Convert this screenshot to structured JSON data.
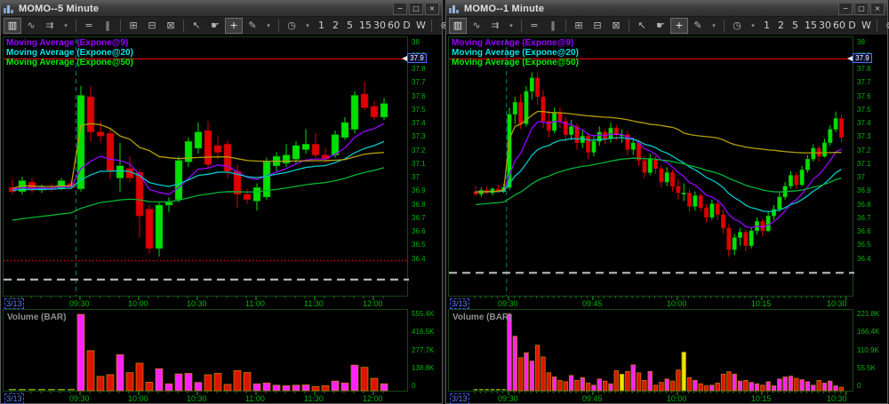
{
  "toolbar": {
    "items": [
      {
        "name": "chart-style-button",
        "glyph": "▥",
        "active": true
      },
      {
        "name": "line-chart-button",
        "glyph": "∿"
      },
      {
        "name": "indicator-button",
        "glyph": "⇉"
      },
      {
        "name": "chart-style-dropdown",
        "glyph": "▾",
        "small": true
      },
      {
        "sep": true
      },
      {
        "name": "horizontal-line-tool-button",
        "glyph": "="
      },
      {
        "name": "vertical-line-tool-button",
        "glyph": "‖"
      },
      {
        "sep": true
      },
      {
        "name": "grid-layout-button",
        "glyph": "⊞"
      },
      {
        "name": "split-horizontal-button",
        "glyph": "⊟"
      },
      {
        "name": "split-diagonal-button",
        "glyph": "⊠"
      },
      {
        "sep": true
      },
      {
        "name": "pointer-tool-button",
        "glyph": "↖"
      },
      {
        "name": "pan-tool-button",
        "glyph": "☛"
      },
      {
        "name": "crosshair-tool-button",
        "glyph": "+",
        "active": true
      },
      {
        "name": "draw-tool-button",
        "glyph": "✎"
      },
      {
        "name": "draw-tool-dropdown",
        "glyph": "▾",
        "small": true
      },
      {
        "sep": true
      },
      {
        "name": "time-interval-button",
        "glyph": "◷"
      },
      {
        "name": "time-interval-dropdown",
        "glyph": "▾",
        "small": true
      },
      {
        "name": "timeframe-1-button",
        "glyph": "1",
        "tf": true
      },
      {
        "name": "timeframe-2-button",
        "glyph": "2",
        "tf": true
      },
      {
        "name": "timeframe-5-button",
        "glyph": "5",
        "tf": true
      },
      {
        "name": "timeframe-15-button",
        "glyph": "15",
        "tf": true
      },
      {
        "name": "timeframe-30-button",
        "glyph": "30",
        "tf": true
      },
      {
        "name": "timeframe-60-button",
        "glyph": "60",
        "tf": true
      },
      {
        "name": "timeframe-day-button",
        "glyph": "D",
        "tf": true
      },
      {
        "name": "timeframe-week-button",
        "glyph": "W",
        "tf": true
      },
      {
        "sep": true
      },
      {
        "name": "clear-studies-button",
        "glyph": "⊗"
      }
    ]
  },
  "window_buttons": [
    {
      "name": "minimize-button",
      "glyph": "−"
    },
    {
      "name": "restore-button",
      "glyph": "□"
    },
    {
      "name": "close-button",
      "glyph": "×"
    }
  ],
  "colors": {
    "candle_up": "#00e000",
    "candle_up_stroke": "#009900",
    "candle_down": "#e00000",
    "candle_down_stroke": "#990000",
    "ema9": "#9а00ff",
    "ema9_fix": "#9900ff",
    "ema20": "#00c8c8",
    "ema50": "#00b434",
    "vwap": "#b4a000",
    "alert": "#c00000",
    "session_line": "#008080",
    "axis_text": "#00b400",
    "vol_up": "#ff22ff",
    "vol_down": "#dd1500",
    "vol_doji": "#e8e800",
    "vol_stroke": "#c07800",
    "dashed_white": "#b0b0b0"
  },
  "windows": [
    {
      "title": "MOMO--5 Minute",
      "ma_labels": [
        {
          "label": "Moving Average (Expone@9)",
          "color": "#9900ff"
        },
        {
          "label": "Moving Average (Expone@20)",
          "color": "#00e5e5"
        },
        {
          "label": "Moving Average (Expone@50)",
          "color": "#00ee00"
        }
      ],
      "volume_title": "Volume (BAR)",
      "date_label": "3/13"
    },
    {
      "title": "MOMO--1 Minute",
      "ma_labels": [
        {
          "label": "Moving Average (Expone@9)",
          "color": "#9900ff"
        },
        {
          "label": "Moving Average (Expone@20)",
          "color": "#00e5e5"
        },
        {
          "label": "Moving Average (Expone@50)",
          "color": "#00ee00"
        }
      ],
      "volume_title": "Volume (BAR)",
      "date_label": "3/13"
    }
  ],
  "chart_data": [
    {
      "type": "candlestick+volume",
      "title": "MOMO--5 Minute",
      "interval": "5 minute",
      "ylim": [
        36.4,
        38.0
      ],
      "y_ticks": [
        "38",
        "37.9",
        "37.8",
        "37.7",
        "37.6",
        "37.5",
        "37.4",
        "37.3",
        "37.2",
        "37.1",
        "37",
        "36.9",
        "36.8",
        "36.7",
        "36.6",
        "36.5",
        "36.4"
      ],
      "alert_line": 37.88,
      "alert_tag": "37.9",
      "dotted_red_line": 36.39,
      "dashed_white_line": 36.25,
      "open_index": 7,
      "x0": 10,
      "pitch": 11.0,
      "x_labels": [
        {
          "text": "09:30",
          "idx": 7
        },
        {
          "text": "10:00",
          "idx": 13
        },
        {
          "text": "10:30",
          "idx": 19
        },
        {
          "text": "11:00",
          "idx": 25
        },
        {
          "text": "11:30",
          "idx": 31
        },
        {
          "text": "12:00",
          "idx": 37
        }
      ],
      "volume_axis": [
        "555.4K",
        "416.5K",
        "277.7K",
        "138.8K",
        "0"
      ],
      "volume_max_k": 555.4,
      "ema_periods": [
        9,
        20,
        50
      ],
      "ema_seeds": [
        36.92,
        36.91,
        36.68
      ],
      "candles": [
        [
          36.93,
          36.99,
          36.88,
          36.9
        ],
        [
          36.9,
          37.01,
          36.88,
          36.98
        ],
        [
          36.97,
          37.0,
          36.89,
          36.91
        ],
        [
          36.91,
          36.95,
          36.89,
          36.93
        ],
        [
          36.93,
          36.96,
          36.9,
          36.92
        ],
        [
          36.92,
          37.0,
          36.91,
          36.98
        ],
        [
          36.96,
          36.98,
          36.92,
          36.93
        ],
        [
          36.92,
          37.68,
          36.9,
          37.61
        ],
        [
          37.6,
          37.68,
          37.27,
          37.34
        ],
        [
          37.34,
          37.42,
          37.26,
          37.31
        ],
        [
          37.33,
          37.36,
          36.99,
          37.05
        ],
        [
          37.0,
          37.26,
          36.9,
          37.09
        ],
        [
          37.07,
          37.16,
          36.97,
          37.0
        ],
        [
          37.04,
          37.06,
          36.56,
          36.72
        ],
        [
          36.77,
          36.8,
          36.44,
          36.48
        ],
        [
          36.48,
          36.82,
          36.42,
          36.8
        ],
        [
          36.8,
          36.86,
          36.75,
          36.82
        ],
        [
          36.84,
          37.16,
          36.82,
          37.13
        ],
        [
          37.12,
          37.3,
          37.08,
          37.27
        ],
        [
          37.22,
          37.41,
          37.18,
          37.34
        ],
        [
          37.35,
          37.42,
          37.07,
          37.1
        ],
        [
          37.24,
          37.31,
          37.14,
          37.19
        ],
        [
          37.25,
          37.28,
          37.0,
          37.05
        ],
        [
          37.05,
          37.1,
          36.78,
          36.88
        ],
        [
          36.88,
          36.92,
          36.81,
          36.84
        ],
        [
          36.83,
          36.96,
          36.76,
          36.93
        ],
        [
          36.86,
          37.15,
          36.84,
          37.12
        ],
        [
          37.09,
          37.19,
          37.05,
          37.16
        ],
        [
          37.11,
          37.25,
          37.08,
          37.17
        ],
        [
          37.14,
          37.27,
          37.1,
          37.24
        ],
        [
          37.21,
          37.36,
          37.18,
          37.25
        ],
        [
          37.25,
          37.33,
          37.15,
          37.17
        ],
        [
          37.17,
          37.22,
          37.11,
          37.14
        ],
        [
          37.17,
          37.35,
          37.15,
          37.32
        ],
        [
          37.3,
          37.45,
          37.28,
          37.41
        ],
        [
          37.36,
          37.64,
          37.33,
          37.61
        ],
        [
          37.62,
          37.71,
          37.5,
          37.52
        ],
        [
          37.53,
          37.57,
          37.43,
          37.45
        ],
        [
          37.45,
          37.59,
          37.43,
          37.55
        ]
      ],
      "volumes_k": [
        2,
        3,
        2,
        1,
        1,
        2,
        1,
        555,
        291,
        104,
        117,
        262,
        131,
        200,
        62,
        160,
        50,
        122,
        126,
        60,
        116,
        126,
        46,
        146,
        132,
        50,
        56,
        40,
        36,
        40,
        42,
        30,
        36,
        70,
        56,
        186,
        170,
        90,
        50
      ]
    },
    {
      "type": "candlestick+volume",
      "title": "MOMO--1 Minute",
      "interval": "1 minute",
      "ylim": [
        36.4,
        38.0
      ],
      "y_ticks": [
        "38",
        "37.9",
        "37.8",
        "37.7",
        "37.6",
        "37.5",
        "37.4",
        "37.3",
        "37.2",
        "37.1",
        "37",
        "36.9",
        "36.8",
        "36.7",
        "36.6",
        "36.5",
        "36.4"
      ],
      "alert_line": 37.88,
      "alert_tag": "37.9",
      "dotted_red_line": null,
      "dashed_white_line": 36.3,
      "open_index": 6,
      "x0": 30,
      "pitch": 6.33,
      "x_labels": [
        {
          "text": "09:30",
          "idx": 6
        },
        {
          "text": "09:45",
          "idx": 21
        },
        {
          "text": "10:00",
          "idx": 36
        },
        {
          "text": "10:15",
          "idx": 51
        },
        {
          "text": "10:30",
          "idx": 66
        }
      ],
      "volume_axis": [
        "221.8K",
        "166.4K",
        "110.9K",
        "55.5K",
        "0"
      ],
      "volume_max_k": 221.8,
      "ema_periods": [
        9,
        20,
        50
      ],
      "ema_seeds": [
        36.9,
        36.9,
        36.8
      ],
      "candles": [
        [
          36.9,
          36.94,
          36.87,
          36.88
        ],
        [
          36.88,
          36.93,
          36.86,
          36.91
        ],
        [
          36.91,
          36.94,
          36.88,
          36.89
        ],
        [
          36.89,
          36.93,
          36.87,
          36.92
        ],
        [
          36.92,
          36.95,
          36.89,
          36.9
        ],
        [
          36.9,
          36.96,
          36.89,
          36.93
        ],
        [
          36.93,
          37.52,
          36.91,
          37.47
        ],
        [
          37.47,
          37.6,
          37.4,
          37.56
        ],
        [
          37.56,
          37.62,
          37.36,
          37.4
        ],
        [
          37.4,
          37.68,
          37.38,
          37.64
        ],
        [
          37.64,
          37.78,
          37.58,
          37.74
        ],
        [
          37.74,
          37.78,
          37.54,
          37.6
        ],
        [
          37.6,
          37.65,
          37.37,
          37.42
        ],
        [
          37.42,
          37.5,
          37.3,
          37.35
        ],
        [
          37.35,
          37.52,
          37.33,
          37.48
        ],
        [
          37.48,
          37.52,
          37.37,
          37.42
        ],
        [
          37.42,
          37.45,
          37.27,
          37.32
        ],
        [
          37.32,
          37.43,
          37.28,
          37.38
        ],
        [
          37.38,
          37.4,
          37.21,
          37.26
        ],
        [
          37.26,
          37.36,
          37.22,
          37.31
        ],
        [
          37.31,
          37.33,
          37.14,
          37.19
        ],
        [
          37.19,
          37.31,
          37.16,
          37.27
        ],
        [
          37.27,
          37.38,
          37.24,
          37.34
        ],
        [
          37.34,
          37.36,
          37.25,
          37.29
        ],
        [
          37.29,
          37.41,
          37.26,
          37.37
        ],
        [
          37.37,
          37.39,
          37.28,
          37.32
        ],
        [
          37.32,
          37.36,
          37.26,
          37.32
        ],
        [
          37.32,
          37.35,
          37.17,
          37.21
        ],
        [
          37.21,
          37.29,
          37.17,
          37.26
        ],
        [
          37.26,
          37.28,
          37.09,
          37.13
        ],
        [
          37.13,
          37.16,
          37.0,
          37.04
        ],
        [
          37.04,
          37.18,
          37.02,
          37.14
        ],
        [
          37.14,
          37.16,
          37.03,
          37.07
        ],
        [
          37.07,
          37.09,
          36.93,
          36.97
        ],
        [
          36.97,
          37.08,
          36.94,
          37.04
        ],
        [
          37.04,
          37.06,
          36.9,
          36.94
        ],
        [
          36.94,
          36.99,
          36.84,
          36.89
        ],
        [
          36.89,
          36.96,
          36.83,
          36.89
        ],
        [
          36.89,
          36.92,
          36.75,
          36.79
        ],
        [
          36.79,
          36.9,
          36.76,
          36.87
        ],
        [
          36.87,
          36.89,
          36.75,
          36.78
        ],
        [
          36.78,
          36.81,
          36.67,
          36.71
        ],
        [
          36.71,
          36.84,
          36.69,
          36.81
        ],
        [
          36.81,
          36.83,
          36.69,
          36.73
        ],
        [
          36.73,
          36.77,
          36.59,
          36.63
        ],
        [
          36.63,
          36.66,
          36.42,
          36.47
        ],
        [
          36.47,
          36.59,
          36.43,
          36.56
        ],
        [
          36.56,
          36.63,
          36.5,
          36.6
        ],
        [
          36.6,
          36.62,
          36.46,
          36.5
        ],
        [
          36.5,
          36.64,
          36.48,
          36.61
        ],
        [
          36.61,
          36.71,
          36.58,
          36.68
        ],
        [
          36.68,
          36.7,
          36.57,
          36.61
        ],
        [
          36.61,
          36.75,
          36.6,
          36.72
        ],
        [
          36.72,
          36.8,
          36.69,
          36.77
        ],
        [
          36.77,
          36.89,
          36.75,
          36.86
        ],
        [
          36.86,
          36.97,
          36.84,
          36.94
        ],
        [
          36.94,
          37.05,
          36.92,
          37.02
        ],
        [
          37.02,
          37.04,
          36.92,
          36.95
        ],
        [
          36.95,
          37.09,
          36.94,
          37.06
        ],
        [
          37.06,
          37.17,
          37.04,
          37.14
        ],
        [
          37.14,
          37.25,
          37.12,
          37.22
        ],
        [
          37.22,
          37.24,
          37.12,
          37.16
        ],
        [
          37.16,
          37.29,
          37.15,
          37.26
        ],
        [
          37.26,
          37.39,
          37.24,
          37.36
        ],
        [
          37.36,
          37.49,
          37.34,
          37.44
        ],
        [
          37.44,
          37.47,
          37.26,
          37.3
        ]
      ],
      "volumes_k": [
        1.5,
        1,
        1.2,
        0.8,
        1,
        2,
        222,
        158,
        96,
        110,
        86,
        132,
        98,
        52,
        40,
        30,
        26,
        44,
        30,
        38,
        22,
        16,
        34,
        28,
        20,
        58,
        48,
        56,
        75,
        52,
        30,
        56,
        16,
        24,
        34,
        28,
        60,
        112,
        38,
        30,
        20,
        14,
        16,
        22,
        48,
        55,
        48,
        28,
        30,
        24,
        20,
        16,
        26,
        14,
        34,
        40,
        42,
        36,
        32,
        26,
        16,
        30,
        22,
        28,
        14,
        10
      ]
    }
  ]
}
